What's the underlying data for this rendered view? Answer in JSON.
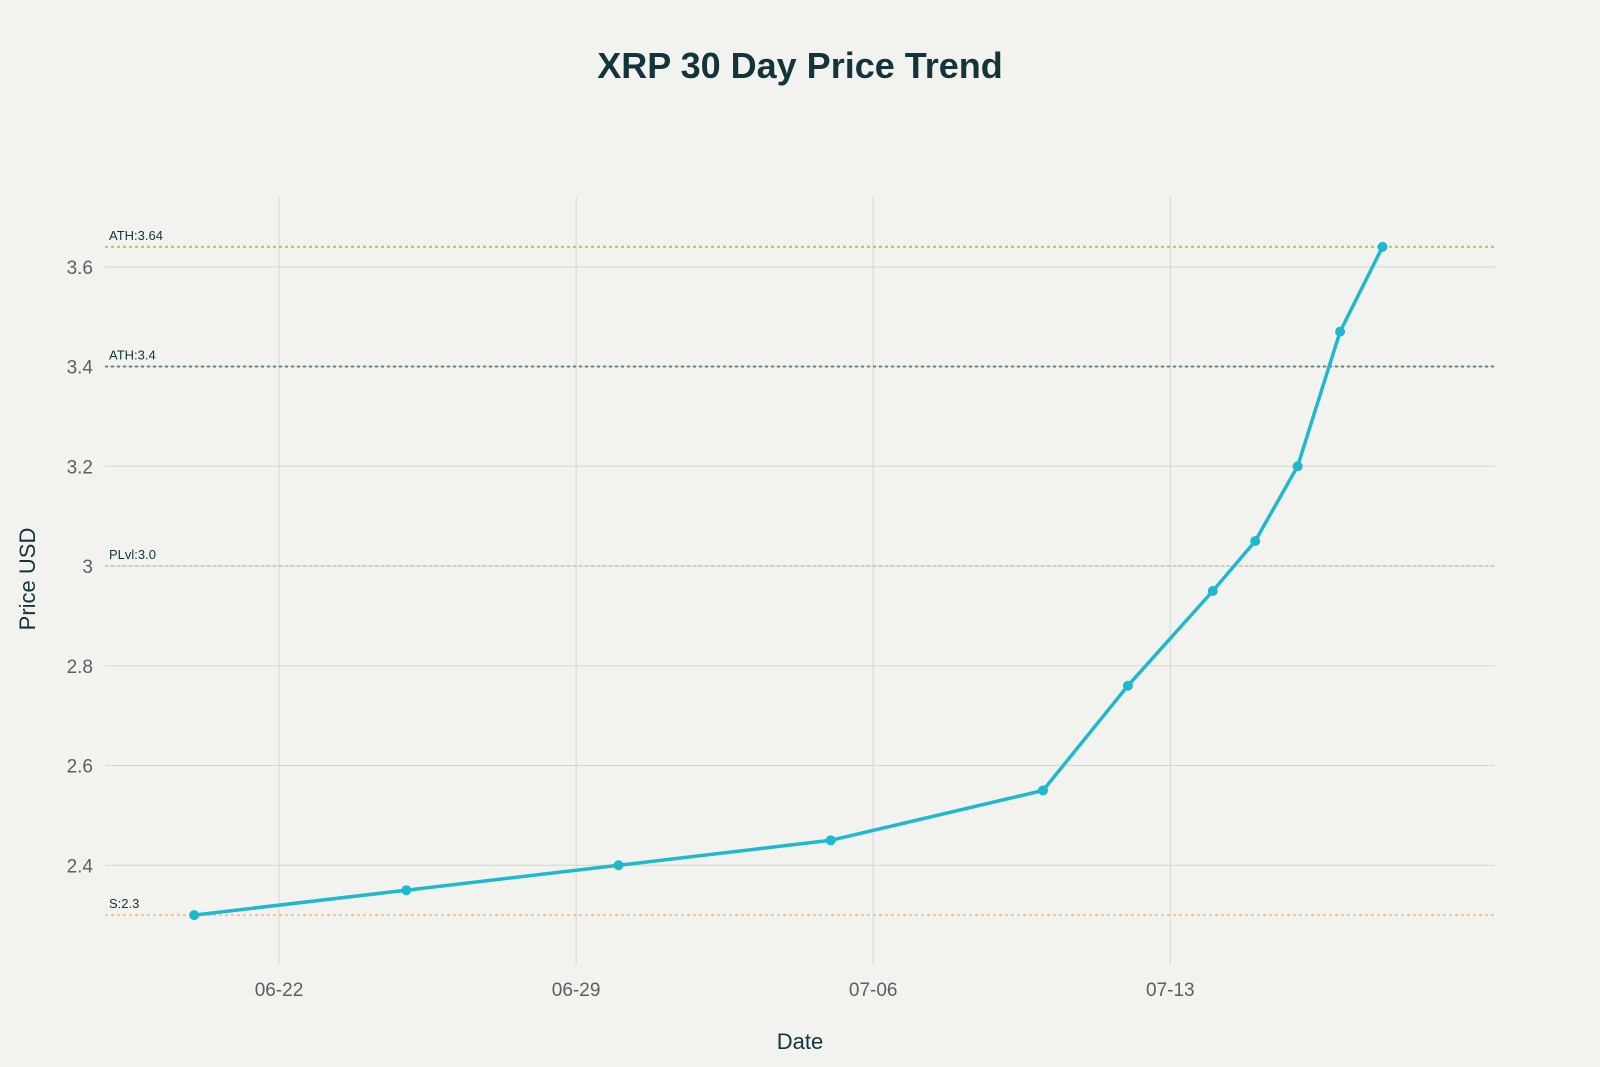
{
  "chart_data": {
    "type": "line",
    "title": "XRP 30 Day Price Trend",
    "xlabel": "Date",
    "ylabel": "Price USD",
    "x_tick_labels": [
      "06-22",
      "06-29",
      "07-06",
      "07-13"
    ],
    "y_tick_labels": [
      "2.4",
      "2.6",
      "2.8",
      "3",
      "3.2",
      "3.4",
      "3.6"
    ],
    "ylim": [
      2.2,
      3.74
    ],
    "xlim": [
      "06-18",
      "07-20"
    ],
    "grid": true,
    "series": [
      {
        "color": "#1fb8cd",
        "points": [
          {
            "x": "06-20",
            "y": 2.3
          },
          {
            "x": "06-25",
            "y": 2.35
          },
          {
            "x": "06-30",
            "y": 2.4
          },
          {
            "x": "07-05",
            "y": 2.45
          },
          {
            "x": "07-10",
            "y": 2.55
          },
          {
            "x": "07-12",
            "y": 2.76
          },
          {
            "x": "07-14",
            "y": 2.95
          },
          {
            "x": "07-15",
            "y": 3.05
          },
          {
            "x": "07-16",
            "y": 3.2
          },
          {
            "x": "07-17",
            "y": 3.47
          },
          {
            "x": "07-18",
            "y": 3.64
          }
        ]
      }
    ],
    "reference_lines": [
      {
        "label": "ATH:3.64",
        "y": 3.64,
        "color": "#d2ba4c"
      },
      {
        "label": "ATH:3.4",
        "y": 3.4,
        "color": "#5d878f"
      },
      {
        "label": "PLvl:3.0",
        "y": 3.0,
        "color": "#c5d1bf"
      },
      {
        "label": "S:2.3",
        "y": 2.3,
        "color": "#ffc185"
      }
    ]
  }
}
